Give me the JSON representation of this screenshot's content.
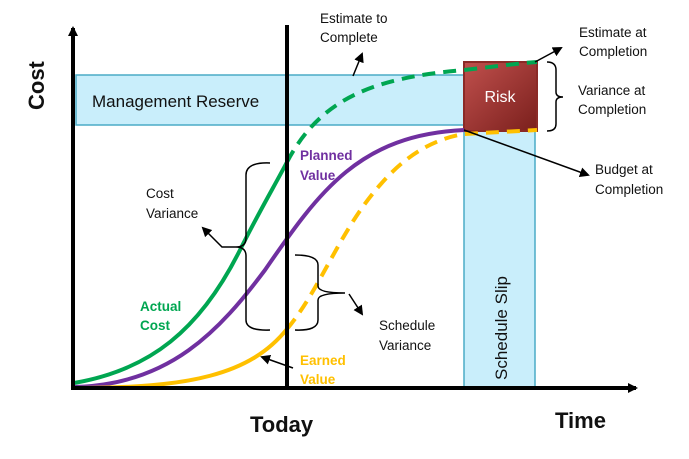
{
  "axes": {
    "y_label": "Cost",
    "x_label": "Time",
    "today_label": "Today"
  },
  "regions": {
    "management_reserve": "Management Reserve",
    "risk": "Risk",
    "schedule_slip": "Schedule Slip"
  },
  "curves": {
    "actual_cost": {
      "line1": "Actual",
      "line2": "Cost",
      "color": "#00a651"
    },
    "planned_value": {
      "line1": "Planned",
      "line2": "Value",
      "color": "#7030a0"
    },
    "earned_value": {
      "line1": "Earned",
      "line2": "Value",
      "color": "#ffc000"
    }
  },
  "annotations": {
    "etc": {
      "line1": "Estimate to",
      "line2": "Complete"
    },
    "eac": {
      "line1": "Estimate at",
      "line2": "Completion"
    },
    "vac": {
      "line1": "Variance at",
      "line2": "Completion"
    },
    "bac": {
      "line1": "Budget at",
      "line2": "Completion"
    },
    "cv": {
      "line1": "Cost",
      "line2": "Variance"
    },
    "sv": {
      "line1": "Schedule",
      "line2": "Variance"
    }
  },
  "colors": {
    "band_fill": "#c9eefb",
    "band_stroke": "#4bacc6",
    "risk_fill": "#a0302c"
  }
}
